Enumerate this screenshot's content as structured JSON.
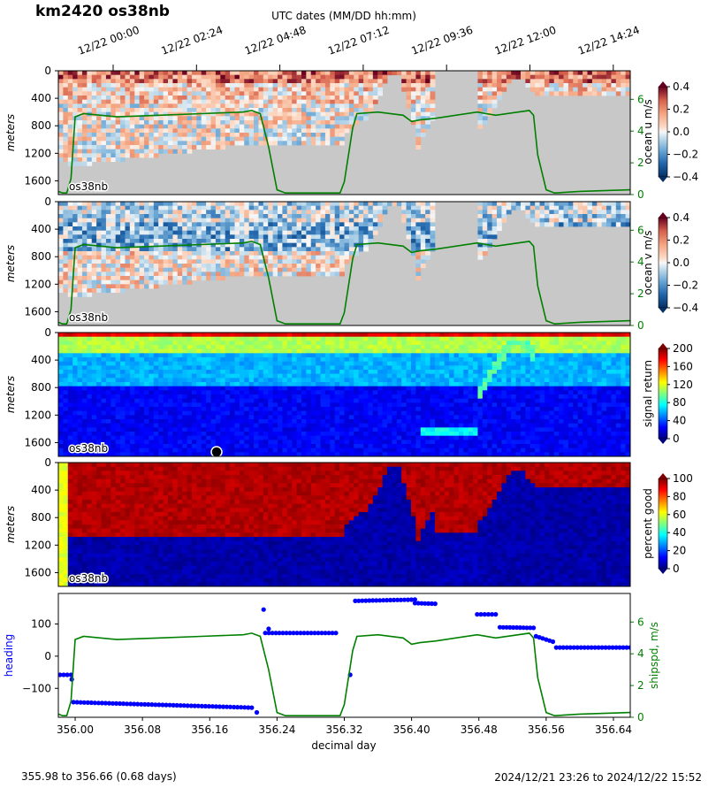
{
  "title": "km2420 os38nb",
  "top_axis": {
    "label": "UTC dates (MM/DD hh:mm)",
    "ticks": [
      "12/22 00:00",
      "12/22 02:24",
      "12/22 04:48",
      "12/22 07:12",
      "12/22 09:36",
      "12/22 12:00",
      "12/22 14:24"
    ]
  },
  "footer": {
    "left": "355.98 to 356.66 (0.68 days)",
    "right": "2024/12/21 23:26 to 2024/12/22 15:52"
  },
  "colors": {
    "ship_speed_line": "#008000",
    "heading_dots": "#0000ff",
    "no_data_gray": "#c8c8c8"
  },
  "chart_data": [
    {
      "type": "heatmap",
      "name_label": "os38nb",
      "ylabel": "meters",
      "yticks": [
        0,
        400,
        800,
        1200,
        1600
      ],
      "colorbar": {
        "label": "ocean u m/s",
        "colormap": "RdBu_r",
        "ticks": [
          "0.4",
          "0.2",
          "0.0",
          "−0.2",
          "−0.4"
        ],
        "range": [
          -0.4,
          0.4
        ]
      },
      "right_axis": {
        "ticks": [
          "6",
          "4",
          "2",
          "0"
        ]
      },
      "xlim": [
        355.98,
        356.66
      ],
      "ylim": [
        1800,
        0
      ]
    },
    {
      "type": "heatmap",
      "name_label": "os38nb",
      "ylabel": "meters",
      "yticks": [
        0,
        400,
        800,
        1200,
        1600
      ],
      "colorbar": {
        "label": "ocean v m/s",
        "colormap": "RdBu_r",
        "ticks": [
          "0.4",
          "0.2",
          "0.0",
          "−0.2",
          "−0.4"
        ],
        "range": [
          -0.4,
          0.4
        ]
      },
      "right_axis": {
        "ticks": [
          "6",
          "4",
          "2",
          "0"
        ]
      },
      "xlim": [
        355.98,
        356.66
      ],
      "ylim": [
        1800,
        0
      ]
    },
    {
      "type": "heatmap",
      "name_label": "os38nb",
      "ylabel": "meters",
      "yticks": [
        0,
        400,
        800,
        1200,
        1600
      ],
      "colorbar": {
        "label": "signal return",
        "colormap": "jet",
        "ticks": [
          "200",
          "160",
          "120",
          "80",
          "40",
          "0"
        ],
        "range": [
          0,
          200
        ]
      },
      "xlim": [
        355.98,
        356.66
      ],
      "ylim": [
        1800,
        0
      ]
    },
    {
      "type": "heatmap",
      "name_label": "os38nb",
      "ylabel": "meters",
      "yticks": [
        0,
        400,
        800,
        1200,
        1600
      ],
      "colorbar": {
        "label": "percent good",
        "colormap": "jet",
        "ticks": [
          "100",
          "80",
          "60",
          "40",
          "20",
          "0"
        ],
        "range": [
          0,
          100
        ]
      },
      "xlim": [
        355.98,
        356.66
      ],
      "ylim": [
        1800,
        0
      ]
    },
    {
      "type": "scatter",
      "ylabel": "heading",
      "y2label": "shipspd, m/s",
      "xlabel": "decimal day",
      "xticks": [
        "356.00",
        "356.08",
        "356.16",
        "356.24",
        "356.32",
        "356.40",
        "356.48",
        "356.56",
        "356.64"
      ],
      "xtick_values": [
        356.0,
        356.08,
        356.16,
        356.24,
        356.32,
        356.4,
        356.48,
        356.56,
        356.64
      ],
      "yticks": [
        "100",
        "0",
        "−100"
      ],
      "y2ticks": [
        "6",
        "4",
        "2",
        "0"
      ],
      "xlim": [
        355.98,
        356.66
      ],
      "ylim": [
        -190,
        195
      ],
      "y2lim": [
        0,
        7.8
      ],
      "heading_segments": [
        {
          "x": [
            355.982,
            355.995
          ],
          "y": [
            -58,
            -58
          ]
        },
        {
          "x": [
            355.998,
            356.21
          ],
          "y": [
            -143,
            -160
          ]
        },
        {
          "x": [
            356.226,
            356.31
          ],
          "y": [
            72,
            72
          ]
        },
        {
          "x": [
            356.333,
            356.404
          ],
          "y": [
            172,
            176
          ]
        },
        {
          "x": [
            356.404,
            356.428
          ],
          "y": [
            165,
            163
          ]
        },
        {
          "x": [
            356.478,
            356.5
          ],
          "y": [
            130,
            130
          ]
        },
        {
          "x": [
            356.505,
            356.545
          ],
          "y": [
            90,
            88
          ]
        },
        {
          "x": [
            356.548,
            356.568
          ],
          "y": [
            62,
            45
          ]
        },
        {
          "x": [
            356.572,
            356.66
          ],
          "y": [
            27,
            27
          ]
        }
      ],
      "heading_points": [
        {
          "x": 355.996,
          "y": -72
        },
        {
          "x": 356.224,
          "y": 145
        },
        {
          "x": 356.23,
          "y": 85
        },
        {
          "x": 356.216,
          "y": -175
        },
        {
          "x": 356.327,
          "y": -58
        }
      ],
      "ship_speed": {
        "x": [
          355.98,
          355.985,
          355.99,
          355.995,
          356.0,
          356.01,
          356.05,
          356.1,
          356.15,
          356.2,
          356.21,
          356.22,
          356.23,
          356.24,
          356.25,
          356.3,
          356.315,
          356.32,
          356.33,
          356.335,
          356.36,
          356.39,
          356.4,
          356.41,
          356.428,
          356.478,
          356.5,
          356.54,
          356.545,
          356.55,
          356.56,
          356.57,
          356.6,
          356.66
        ],
        "y": [
          0.2,
          0.1,
          0.1,
          1.0,
          4.9,
          5.1,
          4.9,
          5.0,
          5.1,
          5.2,
          5.3,
          5.1,
          3.0,
          0.3,
          0.1,
          0.1,
          0.1,
          0.8,
          4.2,
          5.1,
          5.2,
          5.0,
          4.6,
          4.7,
          4.8,
          5.2,
          5.0,
          5.3,
          5.0,
          2.5,
          0.3,
          0.1,
          0.2,
          0.3
        ]
      }
    }
  ]
}
